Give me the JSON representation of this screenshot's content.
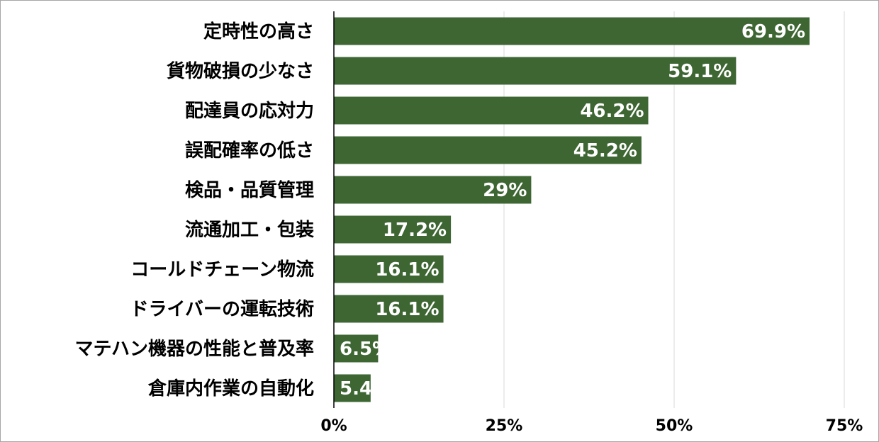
{
  "chart_data": {
    "type": "bar",
    "orientation": "horizontal",
    "categories": [
      "定時性の高さ",
      "貨物破損の少なさ",
      "配達員の応対力",
      "誤配確率の低さ",
      "検品・品質管理",
      "流通加工・包装",
      "コールドチェーン物流",
      "ドライバーの運転技術",
      "マテハン機器の性能と普及率",
      "倉庫内作業の自動化"
    ],
    "values": [
      69.9,
      59.1,
      46.2,
      45.2,
      29,
      17.2,
      16.1,
      16.1,
      6.5,
      5.4
    ],
    "value_labels": [
      "69.9%",
      "59.1%",
      "46.2%",
      "45.2%",
      "29%",
      "17.2%",
      "16.1%",
      "16.1%",
      "6.5%",
      "5.4"
    ],
    "xlim": [
      0,
      75
    ],
    "xticks": [
      0,
      25,
      50,
      75
    ],
    "xtick_labels": [
      "0%",
      "25%",
      "50%",
      "75%"
    ],
    "bar_color": "#3e6633",
    "grid": true,
    "legend": false
  }
}
